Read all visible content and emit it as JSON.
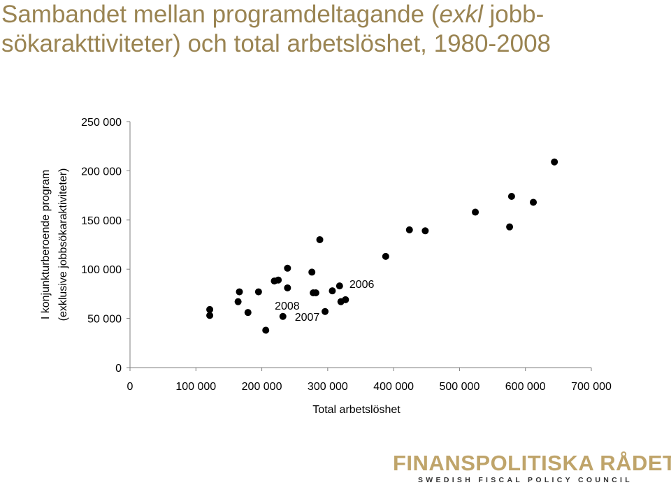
{
  "title": {
    "line1_part1": "Sambandet mellan programdeltagande (",
    "line1_italic": "exkl",
    "line1_part2": " jobb-",
    "line2": "sökarakttiviteter) och total arbetslöshet, 1980-2008"
  },
  "chart_data": {
    "type": "scatter",
    "xlabel": "Total arbetslöshet",
    "ylabel_line1": "I konjunkturberoende program",
    "ylabel_line2": "(exklusive jobbsökaraktiviteter)",
    "xlim": [
      0,
      700000
    ],
    "ylim": [
      0,
      250000
    ],
    "x_ticks": [
      "0",
      "100 000",
      "200 000",
      "300 000",
      "400 000",
      "500 000",
      "600 000",
      "700 000"
    ],
    "y_ticks": [
      "0",
      "50 000",
      "100 000",
      "150 000",
      "200 000",
      "250 000"
    ],
    "grid": false,
    "points": [
      {
        "x": 121000,
        "y": 59000
      },
      {
        "x": 121000,
        "y": 53000
      },
      {
        "x": 164000,
        "y": 67000
      },
      {
        "x": 166000,
        "y": 77000
      },
      {
        "x": 179000,
        "y": 56000
      },
      {
        "x": 195000,
        "y": 77000
      },
      {
        "x": 206000,
        "y": 38000
      },
      {
        "x": 219000,
        "y": 88000
      },
      {
        "x": 225000,
        "y": 89000
      },
      {
        "x": 232000,
        "y": 52000,
        "label": "2007"
      },
      {
        "x": 239000,
        "y": 101000
      },
      {
        "x": 239000,
        "y": 81000
      },
      {
        "x": 276000,
        "y": 97000
      },
      {
        "x": 278000,
        "y": 76000,
        "label": "2008"
      },
      {
        "x": 282000,
        "y": 76000
      },
      {
        "x": 288000,
        "y": 130000
      },
      {
        "x": 296000,
        "y": 57000
      },
      {
        "x": 307000,
        "y": 78000
      },
      {
        "x": 318000,
        "y": 83000,
        "label": "2006"
      },
      {
        "x": 320000,
        "y": 67000
      },
      {
        "x": 327000,
        "y": 69000
      },
      {
        "x": 388000,
        "y": 113000
      },
      {
        "x": 424000,
        "y": 140000
      },
      {
        "x": 448000,
        "y": 139000
      },
      {
        "x": 524000,
        "y": 158000
      },
      {
        "x": 576000,
        "y": 143000
      },
      {
        "x": 579000,
        "y": 174000
      },
      {
        "x": 612000,
        "y": 168000
      },
      {
        "x": 644000,
        "y": 209000
      }
    ]
  },
  "logo": {
    "main": "FINANSPOLITISKA RÅDET",
    "sub": "SWEDISH FISCAL POLICY COUNCIL"
  },
  "colors": {
    "title": "#9a8452",
    "point": "#000000",
    "axis": "#7f7f7f",
    "logo_main": "#bfa46a",
    "logo_sub": "#333333"
  }
}
